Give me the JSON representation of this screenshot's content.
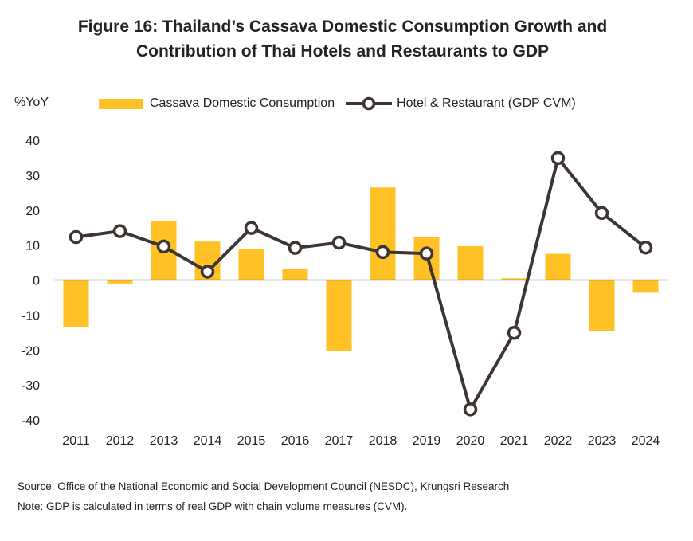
{
  "title_line1": "Figure 16: Thailand’s Cassava Domestic Consumption Growth and",
  "title_line2": "Contribution of Thai Hotels and Restaurants to GDP",
  "y_unit": "%YoY",
  "source": "Source: Office of the National Economic and Social Development Council (NESDC), Krungsri Research",
  "note": "Note: GDP is calculated in terms of real GDP with chain volume measures (CVM).",
  "colors": {
    "bar": "#FFC125",
    "line": "#3E3532",
    "marker_fill": "#FFFFFF",
    "axis": "#4A4A4A"
  },
  "chart_data": {
    "type": "bar",
    "categories": [
      "2011",
      "2012",
      "2013",
      "2014",
      "2015",
      "2016",
      "2017",
      "2018",
      "2019",
      "2020",
      "2021",
      "2022",
      "2023",
      "2024"
    ],
    "series": [
      {
        "name": "Cassava Domestic Consumption",
        "type": "bar",
        "values": [
          -13.5,
          -1.0,
          17.0,
          11.0,
          9.0,
          3.3,
          -20.3,
          26.5,
          12.3,
          9.7,
          0.5,
          7.5,
          -14.6,
          -3.6
        ]
      },
      {
        "name": "Hotel & Restaurant (GDP CVM)",
        "type": "line",
        "values": [
          12.3,
          14.0,
          9.6,
          2.4,
          14.9,
          9.2,
          10.7,
          8.0,
          7.6,
          -37.0,
          -15.1,
          34.9,
          19.2,
          9.3
        ]
      }
    ],
    "ylim": [
      -40,
      40
    ],
    "yticks": [
      -40,
      -30,
      -20,
      -10,
      0,
      10,
      20,
      30,
      40
    ],
    "ylabel": "%YoY",
    "xlabel": "",
    "legend": "top",
    "grid": false
  }
}
